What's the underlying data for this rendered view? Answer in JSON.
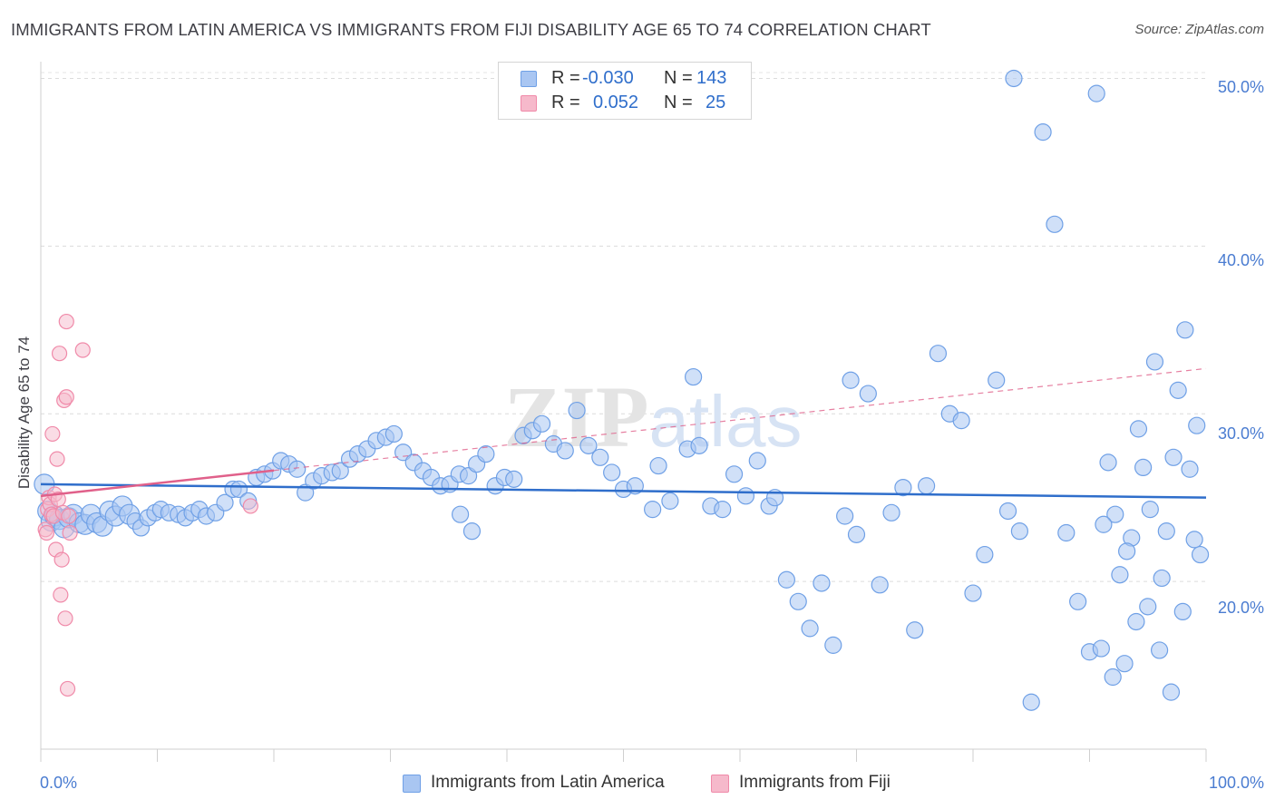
{
  "title": "IMMIGRANTS FROM LATIN AMERICA VS IMMIGRANTS FROM FIJI DISABILITY AGE 65 TO 74 CORRELATION CHART",
  "source": "Source: ZipAtlas.com",
  "legend": {
    "rows": [
      {
        "r_label": "R =",
        "r_value": "-0.030",
        "n_label": "N =",
        "n_value": "143"
      },
      {
        "r_label": "R =",
        "r_value": "0.052",
        "n_label": "N =",
        "n_value": "25"
      }
    ]
  },
  "watermark": "ZIPatlas",
  "colors": {
    "blue": "#6fa0e6",
    "blue_fill": "#a9c6f2",
    "blue_line": "#2f6ecb",
    "pink": "#f08aa9",
    "pink_fill": "#f6b9cb",
    "pink_line": "#e0608a",
    "tick_text": "#4a7cd1"
  },
  "chart_data": {
    "type": "scatter",
    "title": "IMMIGRANTS FROM LATIN AMERICA VS IMMIGRANTS FROM FIJI DISABILITY AGE 65 TO 74 CORRELATION CHART",
    "xlabel": "",
    "ylabel": "Disability Age 65 to 74",
    "xlim": [
      0,
      100
    ],
    "ylim": [
      10,
      51
    ],
    "x_tick_labels": [
      "0.0%",
      "100.0%"
    ],
    "y_ticks": [
      20,
      30,
      40,
      50
    ],
    "y_tick_labels": [
      "20.0%",
      "30.0%",
      "40.0%",
      "50.0%"
    ],
    "grid": true,
    "legend_position": "top-center and bottom",
    "series": [
      {
        "name": "Immigrants from Latin America",
        "R": -0.03,
        "N": 143,
        "trend": {
          "x": [
            0,
            100
          ],
          "y": [
            25.8,
            25.0
          ],
          "style": "solid"
        },
        "points": [
          [
            0.3,
            25.8
          ],
          [
            0.6,
            24.2
          ],
          [
            0.9,
            23.6
          ],
          [
            1.2,
            23.9
          ],
          [
            1.6,
            23.7
          ],
          [
            2.0,
            23.2
          ],
          [
            2.4,
            23.8
          ],
          [
            2.8,
            24.0
          ],
          [
            3.3,
            23.5
          ],
          [
            3.8,
            23.4
          ],
          [
            4.3,
            24.0
          ],
          [
            4.8,
            23.5
          ],
          [
            5.3,
            23.3
          ],
          [
            5.9,
            24.2
          ],
          [
            6.4,
            23.9
          ],
          [
            7.0,
            24.5
          ],
          [
            7.6,
            24.0
          ],
          [
            8.1,
            23.6
          ],
          [
            8.6,
            23.2
          ],
          [
            9.2,
            23.8
          ],
          [
            9.8,
            24.1
          ],
          [
            10.3,
            24.3
          ],
          [
            11.0,
            24.1
          ],
          [
            11.8,
            24.0
          ],
          [
            12.4,
            23.8
          ],
          [
            13.0,
            24.1
          ],
          [
            13.6,
            24.3
          ],
          [
            14.2,
            23.9
          ],
          [
            15.0,
            24.1
          ],
          [
            15.8,
            24.7
          ],
          [
            16.5,
            25.5
          ],
          [
            17.0,
            25.5
          ],
          [
            17.8,
            24.8
          ],
          [
            18.5,
            26.2
          ],
          [
            19.2,
            26.4
          ],
          [
            19.9,
            26.6
          ],
          [
            20.6,
            27.2
          ],
          [
            21.3,
            27.0
          ],
          [
            22.0,
            26.7
          ],
          [
            22.7,
            25.3
          ],
          [
            23.4,
            26.0
          ],
          [
            24.1,
            26.3
          ],
          [
            25.0,
            26.5
          ],
          [
            25.7,
            26.6
          ],
          [
            26.5,
            27.3
          ],
          [
            27.2,
            27.6
          ],
          [
            28.0,
            27.9
          ],
          [
            28.8,
            28.4
          ],
          [
            29.6,
            28.6
          ],
          [
            30.3,
            28.8
          ],
          [
            31.1,
            27.7
          ],
          [
            32.0,
            27.1
          ],
          [
            32.8,
            26.6
          ],
          [
            33.5,
            26.2
          ],
          [
            34.3,
            25.7
          ],
          [
            35.1,
            25.8
          ],
          [
            35.9,
            26.4
          ],
          [
            36.7,
            26.3
          ],
          [
            37.4,
            27.0
          ],
          [
            38.2,
            27.6
          ],
          [
            39.0,
            25.7
          ],
          [
            39.8,
            26.2
          ],
          [
            40.6,
            26.1
          ],
          [
            41.4,
            28.7
          ],
          [
            42.2,
            29.0
          ],
          [
            43.0,
            29.4
          ],
          [
            44.0,
            28.2
          ],
          [
            45.0,
            27.8
          ],
          [
            46.0,
            30.2
          ],
          [
            47.0,
            28.1
          ],
          [
            48.0,
            27.4
          ],
          [
            49.0,
            26.5
          ],
          [
            50.0,
            25.5
          ],
          [
            51.0,
            25.7
          ],
          [
            52.5,
            24.3
          ],
          [
            54.0,
            24.8
          ],
          [
            55.5,
            27.9
          ],
          [
            56.5,
            28.1
          ],
          [
            57.5,
            24.5
          ],
          [
            58.5,
            24.3
          ],
          [
            59.5,
            26.4
          ],
          [
            60.5,
            25.1
          ],
          [
            61.5,
            27.2
          ],
          [
            62.5,
            24.5
          ],
          [
            63.0,
            25.0
          ],
          [
            64.0,
            20.1
          ],
          [
            65.0,
            18.8
          ],
          [
            66.0,
            17.2
          ],
          [
            67.0,
            19.9
          ],
          [
            68.0,
            16.2
          ],
          [
            69.0,
            23.9
          ],
          [
            70.0,
            22.8
          ],
          [
            71.0,
            31.2
          ],
          [
            72.0,
            19.8
          ],
          [
            73.0,
            24.1
          ],
          [
            74.0,
            25.6
          ],
          [
            75.0,
            17.1
          ],
          [
            76.0,
            25.7
          ],
          [
            77.0,
            33.6
          ],
          [
            78.0,
            30.0
          ],
          [
            79.0,
            29.6
          ],
          [
            80.0,
            19.3
          ],
          [
            81.0,
            21.6
          ],
          [
            82.0,
            32.0
          ],
          [
            83.0,
            24.2
          ],
          [
            84.0,
            23.0
          ],
          [
            85.0,
            12.8
          ],
          [
            86.0,
            46.8
          ],
          [
            87.0,
            41.3
          ],
          [
            88.0,
            22.9
          ],
          [
            89.0,
            18.8
          ],
          [
            90.0,
            15.8
          ],
          [
            91.0,
            16.0
          ],
          [
            92.0,
            14.3
          ],
          [
            93.0,
            15.1
          ],
          [
            94.0,
            17.6
          ],
          [
            95.0,
            18.5
          ],
          [
            96.0,
            15.9
          ],
          [
            97.0,
            13.4
          ],
          [
            98.0,
            18.2
          ],
          [
            99.0,
            22.5
          ],
          [
            99.5,
            21.6
          ],
          [
            99.2,
            29.3
          ],
          [
            98.6,
            26.7
          ],
          [
            98.2,
            35.0
          ],
          [
            97.6,
            31.4
          ],
          [
            97.2,
            27.4
          ],
          [
            96.6,
            23.0
          ],
          [
            96.2,
            20.2
          ],
          [
            95.6,
            33.1
          ],
          [
            95.2,
            24.3
          ],
          [
            94.6,
            26.8
          ],
          [
            94.2,
            29.1
          ],
          [
            93.6,
            22.6
          ],
          [
            93.2,
            21.8
          ],
          [
            92.6,
            20.4
          ],
          [
            92.2,
            24.0
          ],
          [
            91.6,
            27.1
          ],
          [
            91.2,
            23.4
          ],
          [
            90.6,
            49.1
          ],
          [
            83.5,
            50.0
          ],
          [
            69.5,
            32.0
          ],
          [
            56.0,
            32.2
          ],
          [
            53.0,
            26.9
          ],
          [
            37.0,
            23.0
          ],
          [
            36.0,
            24.0
          ]
        ]
      },
      {
        "name": "Immigrants from Fiji",
        "R": 0.052,
        "N": 25,
        "trend": {
          "x": [
            0,
            100
          ],
          "y": [
            25.1,
            32.7
          ],
          "style": "solid to ~20%, dashed beyond"
        },
        "points": [
          [
            0.4,
            23.1
          ],
          [
            0.5,
            22.9
          ],
          [
            0.6,
            24.3
          ],
          [
            0.7,
            25.0
          ],
          [
            0.8,
            24.6
          ],
          [
            0.9,
            24.0
          ],
          [
            1.0,
            28.8
          ],
          [
            1.1,
            23.9
          ],
          [
            1.2,
            25.2
          ],
          [
            1.3,
            21.9
          ],
          [
            1.4,
            27.3
          ],
          [
            1.5,
            24.9
          ],
          [
            1.6,
            33.6
          ],
          [
            1.7,
            19.2
          ],
          [
            1.8,
            21.3
          ],
          [
            1.9,
            24.1
          ],
          [
            2.0,
            30.8
          ],
          [
            2.1,
            17.8
          ],
          [
            2.2,
            31.0
          ],
          [
            2.3,
            13.6
          ],
          [
            2.4,
            23.9
          ],
          [
            2.5,
            22.9
          ],
          [
            2.2,
            35.5
          ],
          [
            3.6,
            33.8
          ],
          [
            18.0,
            24.5
          ]
        ]
      }
    ]
  },
  "bottom_legend": {
    "items": [
      "Immigrants from Latin America",
      "Immigrants from Fiji"
    ]
  }
}
